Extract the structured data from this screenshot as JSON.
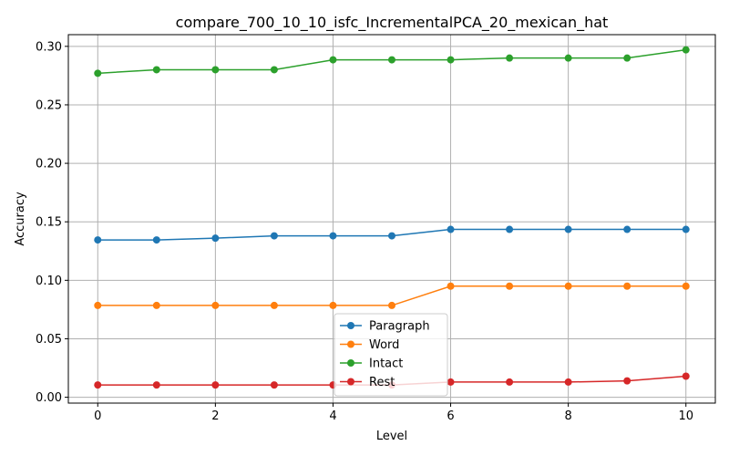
{
  "chart_data": {
    "type": "line",
    "title": "compare_700_10_10_isfc_IncrementalPCA_20_mexican_hat",
    "xlabel": "Level",
    "ylabel": "Accuracy",
    "x": [
      0,
      1,
      2,
      3,
      4,
      5,
      6,
      7,
      8,
      9,
      10
    ],
    "xlim": [
      -0.5,
      10.5
    ],
    "ylim": [
      -0.005,
      0.31
    ],
    "xticks": [
      "0",
      "2",
      "4",
      "6",
      "8",
      "10"
    ],
    "yticks": [
      "0.00",
      "0.05",
      "0.10",
      "0.15",
      "0.20",
      "0.25",
      "0.30"
    ],
    "grid": true,
    "legend_position": "lower-center",
    "series": [
      {
        "name": "Paragraph",
        "color": "#1f77b4",
        "values": [
          0.1345,
          0.1345,
          0.136,
          0.138,
          0.138,
          0.138,
          0.1435,
          0.1435,
          0.1435,
          0.1435,
          0.1435
        ]
      },
      {
        "name": "Word",
        "color": "#ff7f0e",
        "values": [
          0.0785,
          0.0785,
          0.0785,
          0.0785,
          0.0785,
          0.0785,
          0.095,
          0.095,
          0.095,
          0.095,
          0.095
        ]
      },
      {
        "name": "Intact",
        "color": "#2ca02c",
        "values": [
          0.277,
          0.28,
          0.28,
          0.28,
          0.2885,
          0.2885,
          0.2885,
          0.29,
          0.29,
          0.29,
          0.297
        ]
      },
      {
        "name": "Rest",
        "color": "#d62728",
        "values": [
          0.0105,
          0.0105,
          0.0105,
          0.0105,
          0.0105,
          0.0105,
          0.013,
          0.013,
          0.013,
          0.014,
          0.018
        ]
      }
    ]
  }
}
